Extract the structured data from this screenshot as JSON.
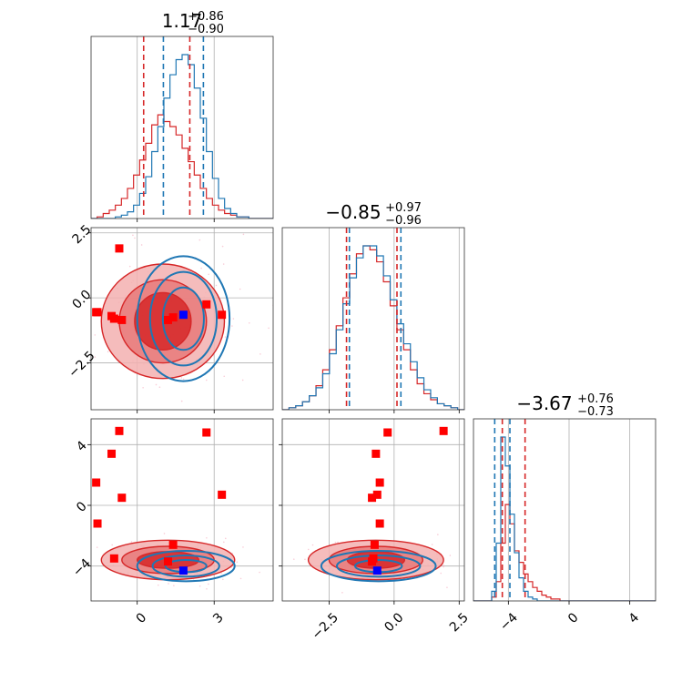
{
  "chart_data": {
    "type": "corner",
    "series": [
      {
        "name": "",
        "color": "#d62728"
      },
      {
        "name": "",
        "color": "#1f77b4"
      }
    ],
    "colors": {
      "red": "#d62728",
      "blue": "#1f77b4",
      "marker_red": "#ff0000",
      "marker_blue": "#0000ff",
      "light_red_points": "#f6b8c8"
    },
    "grid": true,
    "parameters": [
      {
        "range": [
          -1.8,
          5.3
        ],
        "title_median": "1.17",
        "title_plus": "+0.86",
        "title_minus": "−0.90",
        "quantiles_red": [
          0.25,
          2.05
        ],
        "quantiles_blue": [
          1.02,
          2.58
        ],
        "tick_values": [
          0,
          3
        ],
        "tick_labels": [
          "0",
          "3"
        ],
        "grid_values": [
          0,
          3
        ]
      },
      {
        "range": [
          -4.3,
          2.7
        ],
        "title_median": "−0.85",
        "title_plus": "+0.97",
        "title_minus": "−0.96",
        "quantiles_red": [
          -1.83,
          0.11
        ],
        "quantiles_blue": [
          -1.72,
          0.26
        ],
        "tick_values": [
          -2.5,
          0,
          2.5
        ],
        "tick_labels": [
          "−2.5",
          "0.0",
          "2.5"
        ],
        "grid_values": [
          -2.5,
          0,
          2.5
        ]
      },
      {
        "range": [
          -6.3,
          5.7
        ],
        "title_median": "−3.67",
        "title_plus": "+0.76",
        "title_minus": "−0.73",
        "quantiles_red": [
          -4.4,
          -2.9
        ],
        "quantiles_blue": [
          -4.9,
          -3.9
        ],
        "tick_values": [
          -4,
          0,
          4
        ],
        "tick_labels": [
          "−4",
          "0",
          "4"
        ],
        "grid_values": [
          -4,
          0,
          4
        ]
      }
    ],
    "hist_red_1": [
      0.0,
      0.01,
      0.03,
      0.05,
      0.08,
      0.12,
      0.18,
      0.26,
      0.35,
      0.45,
      0.56,
      0.62,
      0.58,
      0.55,
      0.5,
      0.42,
      0.34,
      0.26,
      0.18,
      0.12,
      0.08,
      0.05,
      0.03,
      0.02,
      0.01,
      0.01,
      0.0,
      0.0,
      0.0,
      0.0
    ],
    "hist_blue_1": [
      0.0,
      0.0,
      0.0,
      0.0,
      0.01,
      0.02,
      0.04,
      0.08,
      0.15,
      0.25,
      0.4,
      0.55,
      0.72,
      0.86,
      0.95,
      0.98,
      0.92,
      0.78,
      0.6,
      0.4,
      0.24,
      0.12,
      0.06,
      0.03,
      0.01,
      0.01,
      0.0,
      0.0,
      0.0,
      0.0
    ],
    "hist_red_2": [
      0.0,
      0.01,
      0.02,
      0.04,
      0.07,
      0.12,
      0.2,
      0.3,
      0.42,
      0.56,
      0.68,
      0.78,
      0.82,
      0.8,
      0.74,
      0.64,
      0.52,
      0.4,
      0.3,
      0.2,
      0.13,
      0.08,
      0.05,
      0.03,
      0.02,
      0.01,
      0.0
    ],
    "hist_blue_2": [
      0.0,
      0.01,
      0.02,
      0.04,
      0.07,
      0.11,
      0.18,
      0.28,
      0.4,
      0.53,
      0.66,
      0.76,
      0.82,
      0.82,
      0.77,
      0.67,
      0.55,
      0.43,
      0.33,
      0.24,
      0.16,
      0.1,
      0.06,
      0.03,
      0.02,
      0.01,
      0.0
    ],
    "hist_red_3": [
      0.0,
      0.0,
      0.0,
      0.0,
      0.02,
      0.1,
      0.3,
      0.5,
      0.4,
      0.26,
      0.2,
      0.14,
      0.1,
      0.07,
      0.05,
      0.03,
      0.02,
      0.01,
      0.01,
      0.0,
      0.0,
      0.0,
      0.0,
      0.0,
      0.0,
      0.0,
      0.0,
      0.0,
      0.0,
      0.0,
      0.0,
      0.0,
      0.0,
      0.0,
      0.0,
      0.0,
      0.0,
      0.0,
      0.0,
      0.0
    ],
    "hist_blue_3": [
      0.0,
      0.0,
      0.0,
      0.0,
      0.05,
      0.3,
      0.85,
      0.7,
      0.45,
      0.25,
      0.12,
      0.05,
      0.02,
      0.01,
      0.0,
      0.0,
      0.0,
      0.0,
      0.0,
      0.0,
      0.0,
      0.0,
      0.0,
      0.0,
      0.0,
      0.0,
      0.0,
      0.0,
      0.0,
      0.0,
      0.0,
      0.0,
      0.0,
      0.0,
      0.0,
      0.0,
      0.0,
      0.0,
      0.0,
      0.0
    ],
    "contours": [
      {
        "panel": "p2_1",
        "series": "red",
        "cx": 1.0,
        "cy": -0.9,
        "rx": [
          2.4,
          1.7,
          1.1
        ],
        "ry": [
          2.2,
          1.6,
          1.1
        ]
      },
      {
        "panel": "p2_1",
        "series": "blue",
        "cx": 1.8,
        "cy": -0.8,
        "rx": [
          1.8,
          1.3,
          0.8
        ],
        "ry": [
          2.4,
          1.8,
          1.2
        ]
      },
      {
        "panel": "p3_1",
        "series": "red",
        "cx": 1.2,
        "cy": -3.6,
        "rx": [
          2.6,
          1.8,
          1.2
        ],
        "ry": [
          1.3,
          0.9,
          0.55
        ]
      },
      {
        "panel": "p3_1",
        "series": "blue",
        "cx": 1.9,
        "cy": -4.0,
        "rx": [
          1.9,
          1.3,
          0.8
        ],
        "ry": [
          1.0,
          0.7,
          0.4
        ]
      },
      {
        "panel": "p3_2",
        "series": "red",
        "cx": -0.7,
        "cy": -3.6,
        "rx": [
          2.6,
          1.8,
          1.1
        ],
        "ry": [
          1.3,
          0.9,
          0.55
        ]
      },
      {
        "panel": "p3_2",
        "series": "blue",
        "cx": -0.6,
        "cy": -4.0,
        "rx": [
          2.2,
          1.6,
          0.9
        ],
        "ry": [
          1.0,
          0.7,
          0.4
        ]
      }
    ],
    "markers_red": [
      {
        "p1": -1.6,
        "p2": -0.55,
        "p3": 1.5
      },
      {
        "p1": -1.55,
        "p2": -0.55,
        "p3": -1.2
      },
      {
        "p1": -1.0,
        "p2": -0.7,
        "p3": 3.4
      },
      {
        "p1": -0.7,
        "p2": 1.9,
        "p3": 4.9
      },
      {
        "p1": -0.6,
        "p2": -0.85,
        "p3": 0.5
      },
      {
        "p1": -0.9,
        "p2": -0.8,
        "p3": -3.5
      },
      {
        "p1": 1.2,
        "p2": -0.85,
        "p3": -3.7
      },
      {
        "p1": 1.4,
        "p2": -0.75,
        "p3": -2.6
      },
      {
        "p1": 2.7,
        "p2": -0.25,
        "p3": 4.8
      },
      {
        "p1": 3.3,
        "p2": -0.65,
        "p3": 0.7
      }
    ],
    "marker_blue": {
      "p1": 1.8,
      "p2": -0.65,
      "p3": -4.3
    }
  }
}
